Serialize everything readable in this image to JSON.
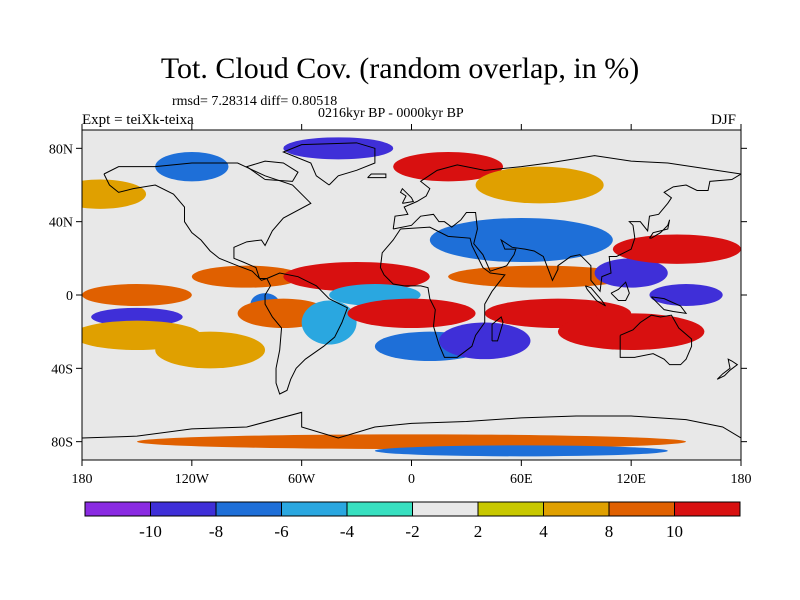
{
  "title": "Tot. Cloud Cov. (random overlap, in %)",
  "stats_text": "rmsd= 7.28314 diff= 0.80518",
  "period_text": "0216kyr BP - 0000kyr BP",
  "experiment_text": "Expt = teiXk-teixa",
  "season_text": "DJF",
  "map": {
    "projection": "cylindrical equidistant",
    "lon_range": [
      -180,
      180
    ],
    "lat_range": [
      -90,
      90
    ],
    "lon_ticks": [
      {
        "value": -180,
        "label": "180"
      },
      {
        "value": -120,
        "label": "120W"
      },
      {
        "value": -60,
        "label": "60W"
      },
      {
        "value": 0,
        "label": "0"
      },
      {
        "value": 60,
        "label": "60E"
      },
      {
        "value": 120,
        "label": "120E"
      },
      {
        "value": 180,
        "label": "180"
      }
    ],
    "lat_ticks": [
      {
        "value": 80,
        "label": "80N"
      },
      {
        "value": 40,
        "label": "40N"
      },
      {
        "value": 0,
        "label": "0"
      },
      {
        "value": -40,
        "label": "40S"
      },
      {
        "value": -80,
        "label": "80S"
      }
    ],
    "field": "total cloud cover difference",
    "background_color": "#e8e8e8",
    "anomalies": [
      {
        "lon": -150,
        "lat": 0,
        "rx": 30,
        "ry": 6,
        "level": 8
      },
      {
        "lon": -150,
        "lat": -12,
        "rx": 25,
        "ry": 5,
        "level": -10
      },
      {
        "lon": -150,
        "lat": -22,
        "rx": 35,
        "ry": 8,
        "level": 6
      },
      {
        "lon": -110,
        "lat": -30,
        "rx": 30,
        "ry": 10,
        "level": 6
      },
      {
        "lon": -90,
        "lat": 10,
        "rx": 30,
        "ry": 6,
        "level": 8
      },
      {
        "lon": -80,
        "lat": -5,
        "rx": 8,
        "ry": 6,
        "level": -8
      },
      {
        "lon": -70,
        "lat": -10,
        "rx": 25,
        "ry": 8,
        "level": 8
      },
      {
        "lon": -45,
        "lat": -15,
        "rx": 15,
        "ry": 12,
        "level": -6
      },
      {
        "lon": -30,
        "lat": 10,
        "rx": 40,
        "ry": 8,
        "level": 10
      },
      {
        "lon": -20,
        "lat": 0,
        "rx": 25,
        "ry": 6,
        "level": -6
      },
      {
        "lon": 0,
        "lat": -10,
        "rx": 35,
        "ry": 8,
        "level": 10
      },
      {
        "lon": 10,
        "lat": -28,
        "rx": 30,
        "ry": 8,
        "level": -8
      },
      {
        "lon": 40,
        "lat": -25,
        "rx": 25,
        "ry": 10,
        "level": -10
      },
      {
        "lon": 60,
        "lat": 30,
        "rx": 50,
        "ry": 12,
        "level": -8
      },
      {
        "lon": 70,
        "lat": 10,
        "rx": 50,
        "ry": 6,
        "level": 8
      },
      {
        "lon": 80,
        "lat": -10,
        "rx": 40,
        "ry": 8,
        "level": 10
      },
      {
        "lon": 120,
        "lat": 12,
        "rx": 20,
        "ry": 8,
        "level": -10
      },
      {
        "lon": 145,
        "lat": 25,
        "rx": 35,
        "ry": 8,
        "level": 10
      },
      {
        "lon": 150,
        "lat": 0,
        "rx": 20,
        "ry": 6,
        "level": -10
      },
      {
        "lon": 120,
        "lat": -20,
        "rx": 40,
        "ry": 10,
        "level": 10
      },
      {
        "lon": -120,
        "lat": 70,
        "rx": 20,
        "ry": 8,
        "level": -8
      },
      {
        "lon": -40,
        "lat": 80,
        "rx": 30,
        "ry": 6,
        "level": -10
      },
      {
        "lon": 20,
        "lat": 70,
        "rx": 30,
        "ry": 8,
        "level": 10
      },
      {
        "lon": 70,
        "lat": 60,
        "rx": 35,
        "ry": 10,
        "level": 4
      },
      {
        "lon": -170,
        "lat": 55,
        "rx": 25,
        "ry": 8,
        "level": 6
      },
      {
        "lon": 0,
        "lat": -80,
        "rx": 150,
        "ry": 4,
        "level": 8
      },
      {
        "lon": 60,
        "lat": -85,
        "rx": 80,
        "ry": 3,
        "level": -8
      }
    ]
  },
  "colorbar": {
    "colors": [
      "#8a2be2",
      "#3f2fd8",
      "#1e6fd8",
      "#2aa7e0",
      "#38e0c0",
      "#e8e8e8",
      "#c8c800",
      "#e0a000",
      "#e06000",
      "#d81010"
    ],
    "labels": [
      "-10",
      "-8",
      "-6",
      "-4",
      "-2",
      "2",
      "4",
      "8",
      "10"
    ]
  }
}
